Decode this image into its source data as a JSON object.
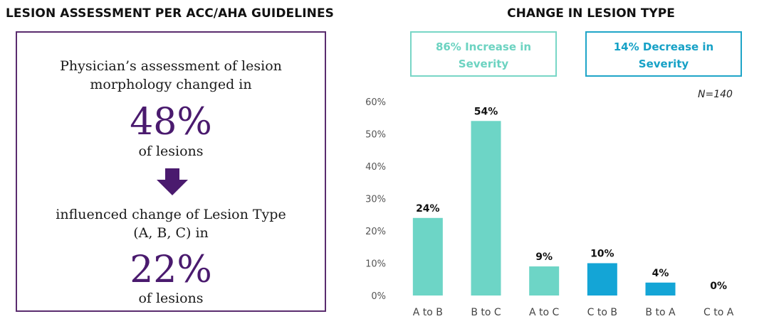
{
  "left_panel": {
    "title": "LESION ASSESSMENT PER ACC/AHA GUIDELINES",
    "intro": "Physician’s assessment of lesion morphology changed in",
    "pct_morphology": "48%",
    "of_lesions_1": "of lesions",
    "arrow_icon": "down-arrow-icon",
    "mid_text": "influenced change of Lesion Type (A, B, C) in",
    "pct_type": "22%",
    "of_lesions_2": "of lesions",
    "accent_color": "#4a1a6e"
  },
  "right_panel": {
    "title": "CHANGE IN LESION TYPE",
    "increase_box": "86% Increase in Severity",
    "decrease_box": "14% Decrease in Severity",
    "n_label": "N=140",
    "colors": {
      "increase": "#6dd5c6",
      "decrease": "#14a5d6"
    }
  },
  "chart_data": {
    "type": "bar",
    "categories": [
      "A to B",
      "B to C",
      "A to C",
      "C to B",
      "B to A",
      "C to A"
    ],
    "values": [
      24,
      54,
      9,
      10,
      4,
      0
    ],
    "data_labels": [
      "24%",
      "54%",
      "9%",
      "10%",
      "4%",
      "0%"
    ],
    "bar_groups": [
      "increase",
      "increase",
      "increase",
      "decrease",
      "decrease",
      "decrease"
    ],
    "ylim": [
      0,
      60
    ],
    "yticks": [
      "0%",
      "10%",
      "20%",
      "30%",
      "40%",
      "50%",
      "60%"
    ],
    "grid": false,
    "title": "",
    "xlabel": "",
    "ylabel": ""
  }
}
